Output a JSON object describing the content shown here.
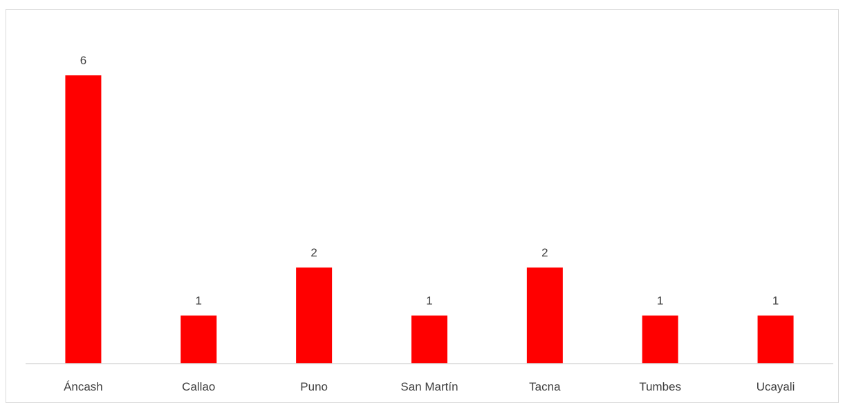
{
  "chart_data": {
    "type": "bar",
    "title": "",
    "xlabel": "",
    "ylabel": "",
    "categories": [
      "Áncash",
      "Callao",
      "Puno",
      "San Martín",
      "Tacna",
      "Tumbes",
      "Ucayali"
    ],
    "values": [
      6,
      1,
      2,
      1,
      2,
      1,
      1
    ],
    "data_labels": [
      "6",
      "1",
      "2",
      "1",
      "2",
      "1",
      "1"
    ],
    "ylim": [
      0,
      7
    ],
    "grid": false,
    "legend": "none",
    "colors": {
      "bar": "#ff0000",
      "axis": "#d9d9d9",
      "text": "#404040"
    }
  }
}
